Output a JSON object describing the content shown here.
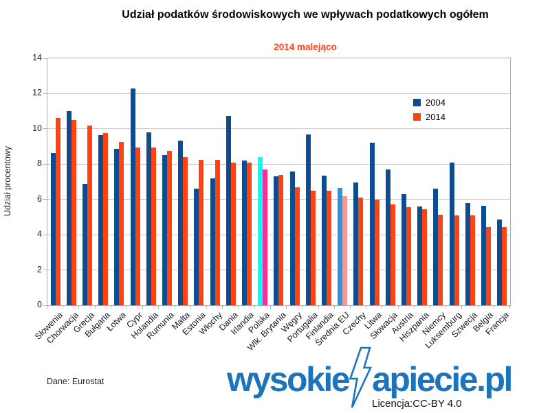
{
  "header": {
    "title": "Udział podatków środowiskowych we wpływach podatkowych ogółem",
    "subtitle": "2014 malejąco",
    "subtitle_color": "#FF420E"
  },
  "footer": {
    "source": "Dane: Eurostat",
    "license": "Licencja:CC-BY 4.0"
  },
  "logo": {
    "part1": "wysokie",
    "part2": "apiecie.pl",
    "color": "#1C75BC",
    "bolt_icon": "lightning-bolt-icon"
  },
  "chart_data": {
    "type": "bar",
    "title": "Udział podatków środowiskowych we wpływach podatkowych ogółem",
    "subtitle": "2014 malejąco",
    "xlabel": "",
    "ylabel": "Udział procentowy",
    "ylim": [
      0,
      14
    ],
    "yticks": [
      0,
      2,
      4,
      6,
      8,
      10,
      12,
      14
    ],
    "grid": true,
    "legend_position": "top-right-inside",
    "categories": [
      "Słowenia",
      "Chorwacja",
      "Grecja",
      "Bułgaria",
      "Łotwa",
      "Cypr",
      "Holandia",
      "Rumunia",
      "Malta",
      "Estonia",
      "Włochy",
      "Dania",
      "Irlandia",
      "Polska",
      "Wlk. Brytania",
      "Węgry",
      "Portugalia",
      "Finlandia",
      "Średnia EU",
      "Czechy",
      "Litwa",
      "Słowacja",
      "Austria",
      "Hiszpania",
      "Niemcy",
      "Luksemburg",
      "Szwecja",
      "Belgia",
      "Francja"
    ],
    "series": [
      {
        "name": "2004",
        "color": "#0D4D8F",
        "values": [
          8.65,
          11.0,
          6.9,
          9.65,
          8.85,
          12.3,
          9.8,
          8.5,
          9.35,
          6.6,
          7.2,
          10.75,
          8.2,
          8.4,
          7.3,
          7.6,
          9.7,
          7.35,
          6.65,
          6.95,
          9.2,
          7.7,
          6.3,
          5.6,
          6.6,
          8.1,
          5.8,
          5.65,
          4.85
        ],
        "color_overrides": {
          "13": "#00FFFF",
          "18": "#2E94D9"
        }
      },
      {
        "name": "2014",
        "color": "#FF420E",
        "values": [
          10.6,
          10.5,
          10.2,
          9.75,
          9.25,
          8.95,
          8.95,
          8.75,
          8.4,
          8.25,
          8.25,
          8.1,
          8.1,
          7.7,
          7.4,
          6.7,
          6.5,
          6.5,
          6.2,
          6.1,
          6.0,
          5.7,
          5.55,
          5.45,
          5.15,
          5.1,
          5.1,
          4.45,
          4.45
        ],
        "color_overrides": {
          "13": "#FF2D95",
          "18": "#F9969B"
        }
      }
    ],
    "highlight_notes": {
      "Polska": "highlighted bars (cyan / magenta)",
      "Średnia EU": "highlighted bars (light blue / light pink)"
    }
  }
}
